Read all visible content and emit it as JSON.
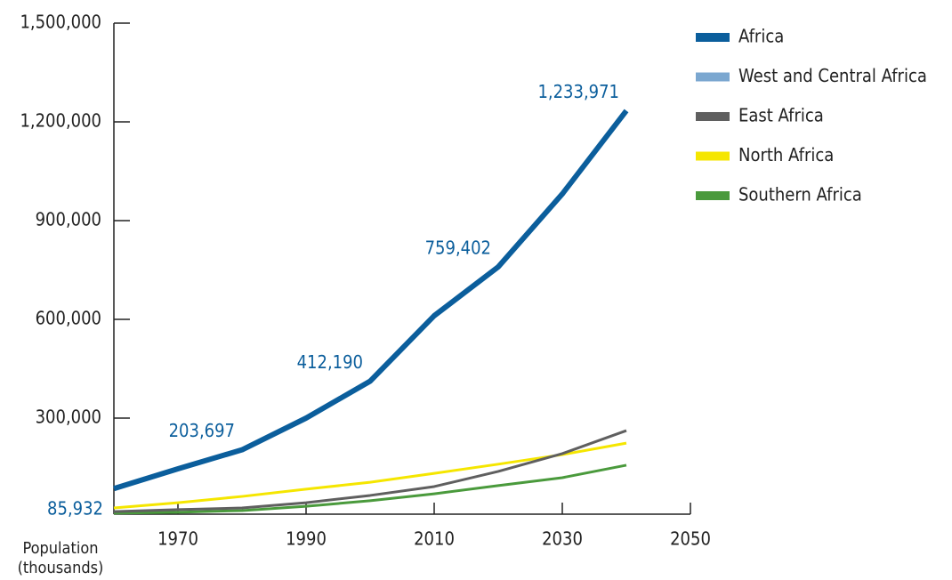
{
  "chart_data": {
    "type": "line",
    "y_label": "Population\n(thousands)",
    "x": [
      1960,
      1970,
      1980,
      1990,
      2000,
      2010,
      2020,
      2030,
      2040
    ],
    "xlim": [
      1960,
      2050
    ],
    "xticks": [
      1970,
      1990,
      2010,
      2030,
      2050
    ],
    "ylim": [
      0,
      1500000
    ],
    "yticks": [
      {
        "value": 300000,
        "label": "300,000"
      },
      {
        "value": 600000,
        "label": "600,000"
      },
      {
        "value": 900000,
        "label": "900,000"
      },
      {
        "value": 1200000,
        "label": "1,200,000"
      },
      {
        "value": 1500000,
        "label": "1,500,000"
      }
    ],
    "series": [
      {
        "name": "Africa",
        "color": "#0b5e9c",
        "values": [
          85932,
          146000,
          203697,
          300000,
          412190,
          611000,
          759402,
          981000,
          1233971
        ],
        "value_labels": [
          "85,932",
          null,
          "203,697",
          null,
          "412,190",
          null,
          "759,402",
          null,
          "1,233,971"
        ]
      },
      {
        "name": "West and Central Africa",
        "color": "#7ba7d0",
        "values": [
          null,
          null,
          null,
          null,
          null,
          null,
          null,
          null,
          null
        ]
      },
      {
        "name": "East Africa",
        "color": "#5f5f5f",
        "values": [
          16000,
          22000,
          27000,
          43000,
          65000,
          92000,
          138000,
          192000,
          262000
        ]
      },
      {
        "name": "North Africa",
        "color": "#f5e600",
        "values": [
          27000,
          43000,
          62000,
          84000,
          105000,
          132000,
          160000,
          189000,
          224000
        ]
      },
      {
        "name": "Southern Africa",
        "color": "#4a9a3c",
        "values": [
          11000,
          14000,
          19000,
          32000,
          49000,
          70000,
          95000,
          119000,
          157000
        ]
      }
    ]
  }
}
